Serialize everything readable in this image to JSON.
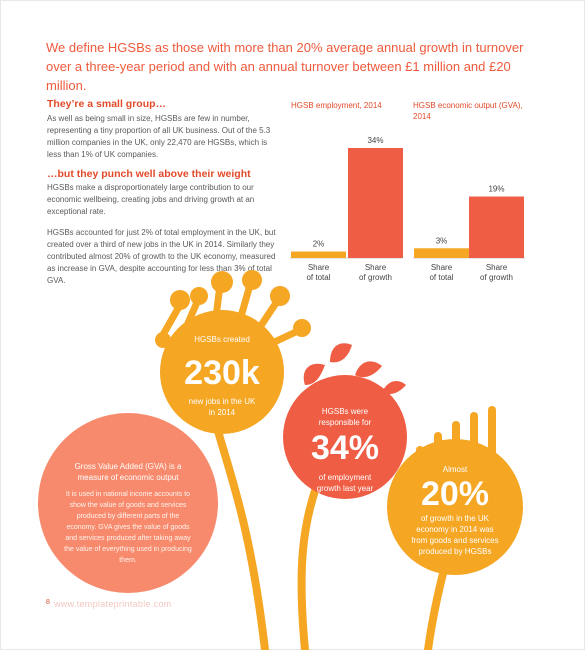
{
  "intro": "We define HGSBs as those with more than 20% average annual growth in turnover over a three-year period and with an annual turnover between £1 million and £20 million.",
  "section1": {
    "heading": "They’re a small group…",
    "body": "As well as being small in size, HGSBs are few in number, representing a tiny proportion of all UK business. Out of the 5.3 million companies in the UK, only 22,470 are HGSBs, which is less than 1% of UK companies."
  },
  "section2": {
    "heading": "…but they punch well above their weight",
    "body1": "HGSBs make a disproportionately large contribution to our economic wellbeing, creating jobs and driving growth at an exceptional rate.",
    "body2": "HGSBs accounted for just 2% of total employment in the UK, but created over a third of new jobs in the UK in 2014. Similarly they contributed almost 20% of growth to the UK economy, measured as increase in GVA, despite accounting for less than 3% of total GVA."
  },
  "colors": {
    "accent": "#ef5a3c",
    "orange": "#f5a623",
    "red": "#ef5d44",
    "coral": "#f78a6c"
  },
  "chart_data": [
    {
      "type": "bar",
      "title": "HGSB employment, 2014",
      "categories": [
        "Share of total",
        "Share of growth"
      ],
      "values": [
        2,
        34
      ],
      "value_labels": [
        "2%",
        "34%"
      ],
      "ylim": [
        0,
        34
      ]
    },
    {
      "type": "bar",
      "title": "HGSB economic output (GVA), 2014",
      "categories": [
        "Share of total",
        "Share of growth"
      ],
      "values": [
        3,
        19
      ],
      "value_labels": [
        "3%",
        "19%"
      ],
      "ylim": [
        0,
        34
      ]
    }
  ],
  "infographic": {
    "jobs": {
      "top": "HGSBs created",
      "value": "230k",
      "bottom": "new jobs in the UK in 2014"
    },
    "employment": {
      "top": "HGSBs were responsible for",
      "value": "34%",
      "bottom": "of employment growth last year"
    },
    "gva_growth": {
      "top": "Almost",
      "value": "20%",
      "bottom": "of growth in the UK economy in 2014 was from goods and services produced by HGSBs"
    },
    "definition": {
      "title": "Gross Value Added (GVA) is a measure of economic output",
      "body": "It is used in national income accounts to show the value of goods and services produced by different parts of the economy. GVA gives the value of goods and services produced after taking away the value of everything used in producing them."
    }
  },
  "footer": {
    "page_number": "8",
    "watermark": "www.templateprintable.com"
  }
}
